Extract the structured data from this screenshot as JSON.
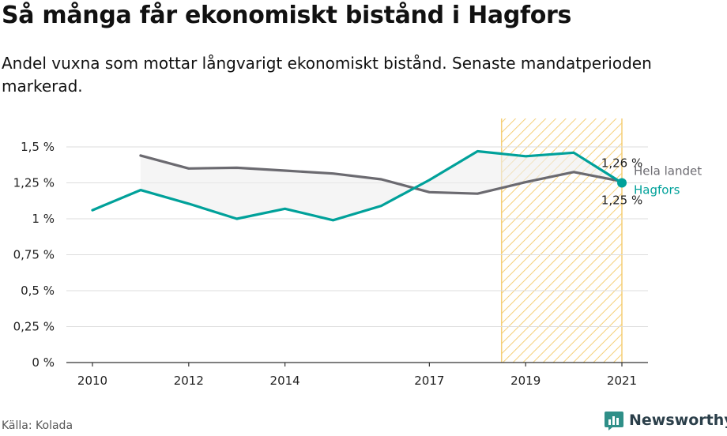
{
  "header": {
    "title": "Så många får ekonomiskt bistånd i Hagfors",
    "subtitle": "Andel vuxna som mottar långvarigt ekonomiskt bistånd. Senaste mandatperioden markerad."
  },
  "footer": {
    "source": "Källa: Kolada",
    "brand": "Newsworthy"
  },
  "colors": {
    "hagfors": "#00a19a",
    "national": "#6b6a70",
    "highlight": "#f5cf77",
    "grid": "#dddddd"
  },
  "chart_data": {
    "type": "line",
    "title": "Så många får ekonomiskt bistånd i Hagfors",
    "xlabel": "",
    "ylabel": "",
    "xlim": [
      2010,
      2021
    ],
    "ylim": [
      0,
      1.5
    ],
    "y_ticks": [
      0,
      0.25,
      0.5,
      0.75,
      1,
      1.25,
      1.5
    ],
    "y_tick_labels": [
      "0 %",
      "0,25 %",
      "0,5 %",
      "0,75 %",
      "1 %",
      "1,25 %",
      "1,5 %"
    ],
    "x_ticks": [
      2010,
      2012,
      2014,
      2017,
      2019,
      2021
    ],
    "x_tick_labels": [
      "2010",
      "2012",
      "2014",
      "2017",
      "2019",
      "2021"
    ],
    "grid": true,
    "highlight_range": [
      2018.5,
      2021
    ],
    "series": [
      {
        "name": "Hela landet",
        "color": "#6b6a70",
        "x": [
          2011,
          2012,
          2013,
          2014,
          2015,
          2016,
          2017,
          2018,
          2019,
          2020,
          2021
        ],
        "y": [
          1.44,
          1.35,
          1.355,
          1.335,
          1.315,
          1.275,
          1.185,
          1.175,
          1.255,
          1.325,
          1.26
        ],
        "end_label": "1,26 %"
      },
      {
        "name": "Hagfors",
        "color": "#00a19a",
        "x": [
          2010,
          2011,
          2012,
          2013,
          2014,
          2015,
          2016,
          2017,
          2018,
          2019,
          2020,
          2021
        ],
        "y": [
          1.06,
          1.2,
          1.105,
          1.0,
          1.07,
          0.99,
          1.09,
          1.27,
          1.47,
          1.435,
          1.46,
          1.25
        ],
        "end_label": "1,25 %"
      }
    ]
  }
}
